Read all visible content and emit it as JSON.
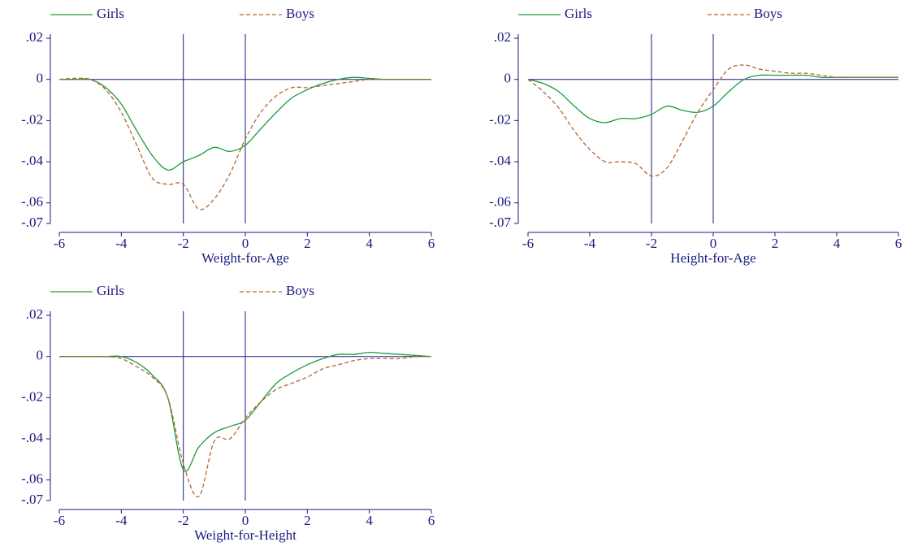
{
  "chart_data": [
    {
      "type": "line",
      "x_label": "Weight-for-Age",
      "x": [
        -6,
        -5.5,
        -5,
        -4.5,
        -4,
        -3.5,
        -3,
        -2.5,
        -2,
        -1.5,
        -1,
        -0.5,
        0,
        0.5,
        1,
        1.5,
        2,
        2.5,
        3,
        3.5,
        4,
        4.5,
        5,
        5.5,
        6
      ],
      "series": [
        {
          "name": "Girls",
          "color": "#1e9a3c",
          "dash": false,
          "values": [
            0,
            0,
            0,
            -0.004,
            -0.012,
            -0.025,
            -0.037,
            -0.044,
            -0.04,
            -0.037,
            -0.033,
            -0.035,
            -0.032,
            -0.024,
            -0.016,
            -0.009,
            -0.005,
            -0.002,
            0,
            0.001,
            0.0005,
            0,
            0,
            0,
            0
          ]
        },
        {
          "name": "Boys",
          "color": "#b5652e",
          "dash": true,
          "values": [
            0,
            0.0005,
            0,
            -0.005,
            -0.016,
            -0.032,
            -0.048,
            -0.051,
            -0.051,
            -0.063,
            -0.058,
            -0.046,
            -0.029,
            -0.016,
            -0.008,
            -0.004,
            -0.004,
            -0.003,
            -0.002,
            -0.001,
            0,
            0,
            0,
            0,
            0
          ]
        }
      ],
      "xlim": [
        -6,
        6
      ],
      "ylim": [
        -0.07,
        0.022
      ],
      "xticks": [
        -6,
        -4,
        -2,
        0,
        2,
        4,
        6
      ],
      "yticks": [
        {
          "value": 0.02,
          "label": ".02"
        },
        0,
        {
          "value": -0.02,
          "label": "-.02"
        },
        {
          "value": -0.04,
          "label": "-.04"
        },
        {
          "value": -0.06,
          "label": "-.06"
        },
        {
          "value": -0.07,
          "label": "-.07"
        }
      ],
      "vlines": [
        -2,
        0
      ],
      "hline": 0
    },
    {
      "type": "line",
      "x_label": "Height-for-Age",
      "x": [
        -6,
        -5.5,
        -5,
        -4.5,
        -4,
        -3.5,
        -3,
        -2.5,
        -2,
        -1.5,
        -1,
        -0.5,
        0,
        0.5,
        1,
        1.5,
        2,
        2.5,
        3,
        3.5,
        4,
        4.5,
        5,
        5.5,
        6
      ],
      "series": [
        {
          "name": "Girls",
          "color": "#1e9a3c",
          "dash": false,
          "values": [
            0,
            -0.002,
            -0.006,
            -0.013,
            -0.019,
            -0.021,
            -0.019,
            -0.019,
            -0.017,
            -0.013,
            -0.015,
            -0.016,
            -0.013,
            -0.006,
            0,
            0.002,
            0.002,
            0.002,
            0.002,
            0.001,
            0.001,
            0.001,
            0.001,
            0.001,
            0.001
          ]
        },
        {
          "name": "Boys",
          "color": "#b5652e",
          "dash": true,
          "values": [
            0,
            -0.006,
            -0.014,
            -0.025,
            -0.034,
            -0.04,
            -0.04,
            -0.041,
            -0.047,
            -0.043,
            -0.03,
            -0.016,
            -0.005,
            0.005,
            0.007,
            0.005,
            0.004,
            0.003,
            0.003,
            0.002,
            0.001,
            0.001,
            0.001,
            0.001,
            0.001
          ]
        }
      ],
      "xlim": [
        -6,
        6
      ],
      "ylim": [
        -0.07,
        0.022
      ],
      "xticks": [
        -6,
        -4,
        -2,
        0,
        2,
        4,
        6
      ],
      "yticks": [
        {
          "value": 0.02,
          "label": ".02"
        },
        0,
        {
          "value": -0.02,
          "label": "-.02"
        },
        {
          "value": -0.04,
          "label": "-.04"
        },
        {
          "value": -0.06,
          "label": "-.06"
        },
        {
          "value": -0.07,
          "label": "-.07"
        }
      ],
      "vlines": [
        -2,
        0
      ],
      "hline": 0
    },
    {
      "type": "line",
      "x_label": "Weight-for-Height",
      "x": [
        -6,
        -5.5,
        -5,
        -4.5,
        -4,
        -3.5,
        -3,
        -2.5,
        -2,
        -1.5,
        -1,
        -0.5,
        0,
        0.5,
        1,
        1.5,
        2,
        2.5,
        3,
        3.5,
        4,
        4.5,
        5,
        5.5,
        6
      ],
      "series": [
        {
          "name": "Girls",
          "color": "#1e9a3c",
          "dash": false,
          "values": [
            0,
            0,
            0,
            0,
            0,
            -0.003,
            -0.009,
            -0.02,
            -0.055,
            -0.044,
            -0.037,
            -0.034,
            -0.031,
            -0.022,
            -0.013,
            -0.008,
            -0.004,
            -0.001,
            0.001,
            0.001,
            0.002,
            0.0015,
            0.001,
            0.0005,
            0
          ]
        },
        {
          "name": "Boys",
          "color": "#b5652e",
          "dash": true,
          "values": [
            0,
            0,
            0,
            0,
            -0.001,
            -0.005,
            -0.01,
            -0.02,
            -0.052,
            -0.068,
            -0.041,
            -0.04,
            -0.03,
            -0.022,
            -0.016,
            -0.013,
            -0.01,
            -0.006,
            -0.004,
            -0.002,
            -0.001,
            -0.001,
            -0.001,
            0,
            0
          ]
        }
      ],
      "xlim": [
        -6,
        6
      ],
      "ylim": [
        -0.07,
        0.022
      ],
      "xticks": [
        -6,
        -4,
        -2,
        0,
        2,
        4,
        6
      ],
      "yticks": [
        {
          "value": 0.02,
          "label": ".02"
        },
        0,
        {
          "value": -0.02,
          "label": "-.02"
        },
        {
          "value": -0.04,
          "label": "-.04"
        },
        {
          "value": -0.06,
          "label": "-.06"
        },
        {
          "value": -0.07,
          "label": "-.07"
        }
      ],
      "vlines": [
        -2,
        0
      ],
      "hline": 0
    }
  ]
}
